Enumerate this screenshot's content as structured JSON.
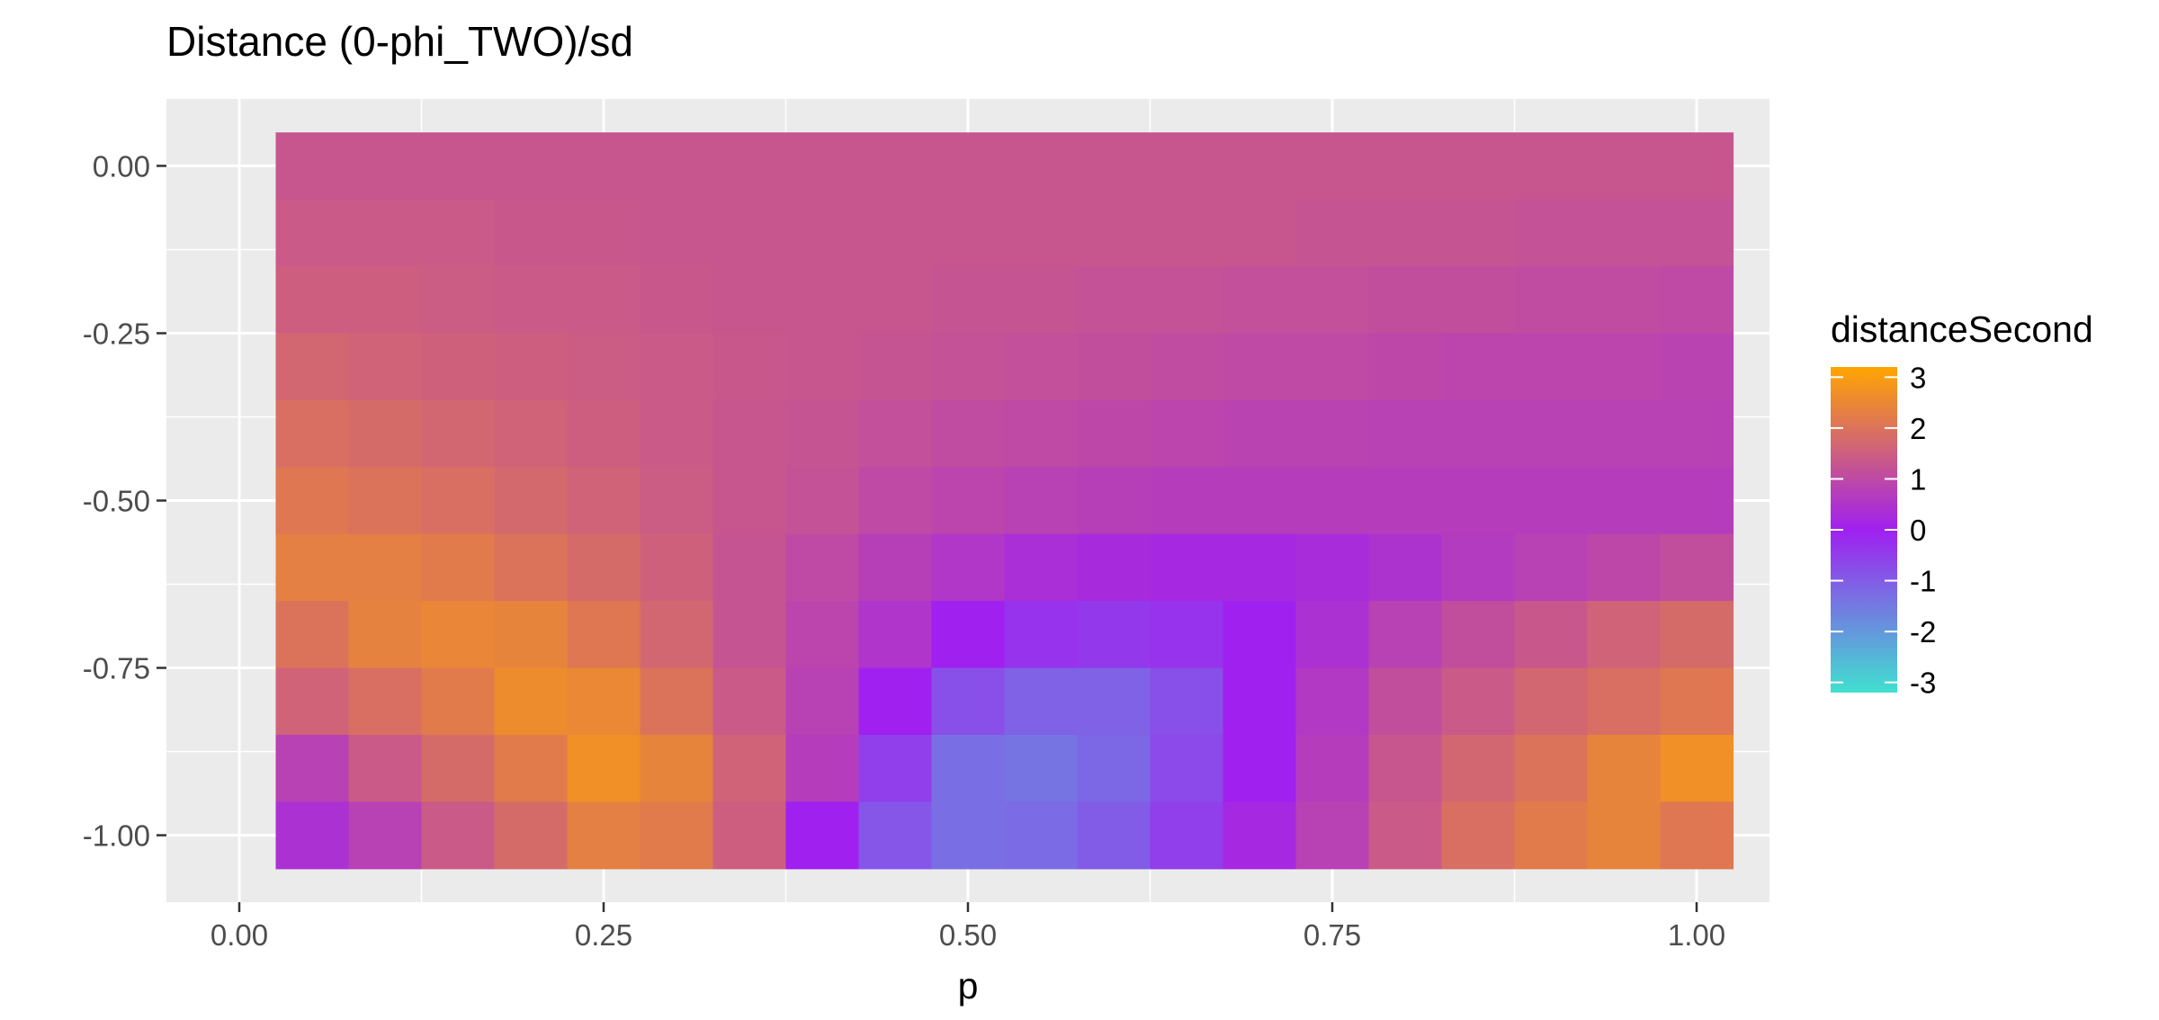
{
  "chart_data": {
    "type": "heatmap",
    "title": "Distance (0-phi_TWO)/sd",
    "xlabel": "p",
    "ylabel": "",
    "xlim": [
      -0.05,
      1.05
    ],
    "ylim": [
      -1.1,
      0.1
    ],
    "x_ticks": [
      0.0,
      0.25,
      0.5,
      0.75,
      1.0
    ],
    "x_tick_labels": [
      "0.00",
      "0.25",
      "0.50",
      "0.75",
      "1.00"
    ],
    "y_ticks": [
      0.0,
      -0.25,
      -0.5,
      -0.75,
      -1.0
    ],
    "y_tick_labels": [
      "0.00",
      "-0.25",
      "-0.50",
      "-0.75",
      "-1.00"
    ],
    "grid": true,
    "x": [
      0.05,
      0.1,
      0.15,
      0.2,
      0.25,
      0.3,
      0.35,
      0.4,
      0.45,
      0.5,
      0.55,
      0.6,
      0.65,
      0.7,
      0.75,
      0.8,
      0.85,
      0.9,
      0.95,
      1.0
    ],
    "y": [
      0.0,
      -0.1,
      -0.2,
      -0.3,
      -0.4,
      -0.5,
      -0.6,
      -0.7,
      -0.8,
      -0.9,
      -1.0
    ],
    "z": [
      [
        1.3,
        1.3,
        1.3,
        1.3,
        1.3,
        1.3,
        1.3,
        1.3,
        1.3,
        1.3,
        1.3,
        1.3,
        1.3,
        1.3,
        1.3,
        1.3,
        1.3,
        1.3,
        1.3,
        1.3
      ],
      [
        1.4,
        1.4,
        1.4,
        1.35,
        1.35,
        1.3,
        1.3,
        1.3,
        1.3,
        1.3,
        1.3,
        1.3,
        1.3,
        1.3,
        1.25,
        1.25,
        1.25,
        1.2,
        1.2,
        1.2
      ],
      [
        1.5,
        1.5,
        1.45,
        1.4,
        1.4,
        1.35,
        1.3,
        1.3,
        1.3,
        1.25,
        1.25,
        1.2,
        1.2,
        1.15,
        1.15,
        1.1,
        1.1,
        1.05,
        1.05,
        1.0
      ],
      [
        1.7,
        1.6,
        1.55,
        1.5,
        1.45,
        1.4,
        1.35,
        1.3,
        1.25,
        1.2,
        1.15,
        1.1,
        1.05,
        1.0,
        1.0,
        0.95,
        0.9,
        0.9,
        0.9,
        0.85
      ],
      [
        1.9,
        1.8,
        1.7,
        1.6,
        1.5,
        1.4,
        1.3,
        1.25,
        1.15,
        1.05,
        1.0,
        0.95,
        0.9,
        0.85,
        0.85,
        0.8,
        0.8,
        0.8,
        0.8,
        0.8
      ],
      [
        2.1,
        2.0,
        1.9,
        1.75,
        1.6,
        1.45,
        1.3,
        1.2,
        1.0,
        0.9,
        0.8,
        0.75,
        0.7,
        0.7,
        0.7,
        0.7,
        0.7,
        0.7,
        0.7,
        0.7
      ],
      [
        2.3,
        2.3,
        2.2,
        2.0,
        1.8,
        1.55,
        1.25,
        1.0,
        0.75,
        0.55,
        0.35,
        0.25,
        0.2,
        0.2,
        0.3,
        0.45,
        0.65,
        0.8,
        0.95,
        1.1
      ],
      [
        2.0,
        2.35,
        2.45,
        2.4,
        2.1,
        1.7,
        1.25,
        0.9,
        0.5,
        0.0,
        -0.3,
        -0.4,
        -0.3,
        0.0,
        0.4,
        0.8,
        1.1,
        1.35,
        1.6,
        1.8
      ],
      [
        1.6,
        1.9,
        2.2,
        2.6,
        2.5,
        2.0,
        1.4,
        0.8,
        0.0,
        -0.8,
        -1.1,
        -1.1,
        -0.8,
        0.0,
        0.6,
        1.1,
        1.4,
        1.7,
        1.9,
        2.1
      ],
      [
        0.8,
        1.4,
        1.8,
        2.2,
        2.7,
        2.4,
        1.6,
        0.7,
        -0.5,
        -1.3,
        -1.4,
        -1.2,
        -0.7,
        0.0,
        0.7,
        1.3,
        1.7,
        2.0,
        2.4,
        2.7
      ],
      [
        0.4,
        0.8,
        1.4,
        1.8,
        2.3,
        2.2,
        1.5,
        0.0,
        -0.9,
        -1.3,
        -1.25,
        -1.0,
        -0.5,
        0.2,
        0.8,
        1.4,
        1.9,
        2.2,
        2.4,
        2.1
      ]
    ],
    "legend": {
      "title": "distanceSecond",
      "position": "right",
      "breaks": [
        3,
        2,
        1,
        0,
        -1,
        -2,
        -3
      ],
      "labels": [
        "3",
        "2",
        "1",
        "0",
        "-1",
        "-2",
        "-3"
      ],
      "limits": [
        -3.2,
        3.2
      ],
      "colors": [
        "#40E0D0",
        "#A020F0",
        "#FFA500"
      ]
    },
    "panel_background": "#EBEBEB",
    "grid_color": "#FFFFFF",
    "tick_color": "#333333"
  }
}
